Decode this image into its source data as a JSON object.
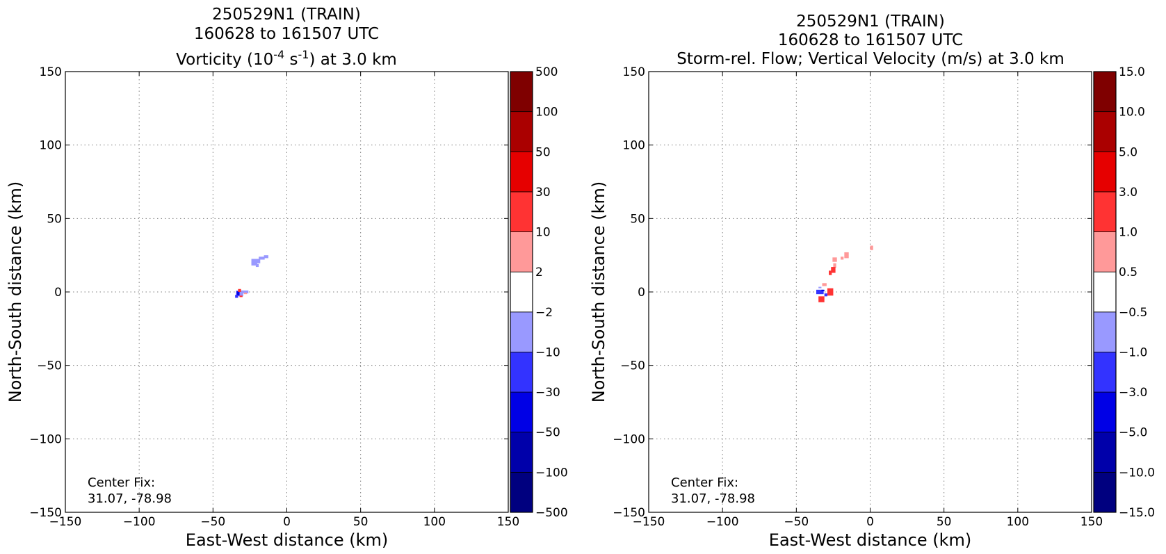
{
  "colors": {
    "levels": [
      "#00007f",
      "#0000aa",
      "#0000e6",
      "#3333ff",
      "#9999ff",
      "#ffffff",
      "#ff9999",
      "#ff3333",
      "#e60000",
      "#aa0000",
      "#7f0000"
    ]
  },
  "chart_data": [
    {
      "type": "heatmap",
      "title_lines": [
        "250529N1 (TRAIN)",
        "160628 to 161507 UTC"
      ],
      "title_line3": {
        "pre": "Vorticity (10",
        "sup1": "-4",
        "mid": " s",
        "sup2": "-1",
        "post": ") at 3.0 km"
      },
      "xlabel": "East-West distance (km)",
      "ylabel": "North-South distance (km)",
      "xlim": [
        -150,
        150
      ],
      "ylim": [
        -150,
        150
      ],
      "xticks": [
        -150,
        -100,
        -50,
        0,
        50,
        100,
        150
      ],
      "yticks": [
        -150,
        -100,
        -50,
        0,
        50,
        100,
        150
      ],
      "xtick_labels": [
        "−150",
        "−100",
        "−50",
        "0",
        "50",
        "100",
        "150"
      ],
      "ytick_labels": [
        "−150",
        "−100",
        "−50",
        "0",
        "50",
        "100",
        "150"
      ],
      "grid": true,
      "annotation": [
        "Center Fix:",
        "31.07, -78.98"
      ],
      "colorbar": {
        "bounds": [
          -500,
          -100,
          -50,
          -30,
          -10,
          -2,
          2,
          10,
          30,
          50,
          100,
          500
        ],
        "labels": [
          "−500",
          "−100",
          "−50",
          "−30",
          "−10",
          "−2",
          "2",
          "10",
          "30",
          "50",
          "100",
          "500"
        ]
      },
      "points": [
        {
          "x": -21,
          "y": 21,
          "w": 6,
          "h": 3,
          "level": 4
        },
        {
          "x": -17,
          "y": 23,
          "w": 4,
          "h": 2,
          "level": 4
        },
        {
          "x": -14,
          "y": 24,
          "w": 3,
          "h": 2,
          "level": 4
        },
        {
          "x": -22,
          "y": 19,
          "w": 4,
          "h": 2,
          "level": 4
        },
        {
          "x": -20,
          "y": 18,
          "w": 2,
          "h": 2,
          "level": 4
        },
        {
          "x": -32,
          "y": -1,
          "w": 5,
          "h": 4,
          "level": 4
        },
        {
          "x": -28,
          "y": 0,
          "w": 4,
          "h": 2,
          "level": 4
        },
        {
          "x": -33,
          "y": -1,
          "w": 2,
          "h": 3,
          "level": 2
        },
        {
          "x": -34,
          "y": -3,
          "w": 2,
          "h": 2,
          "level": 3
        },
        {
          "x": -32,
          "y": 1,
          "w": 2,
          "h": 2,
          "level": 7
        },
        {
          "x": -31,
          "y": -3,
          "w": 2,
          "h": 1,
          "level": 7
        },
        {
          "x": -28,
          "y": -1,
          "w": 2,
          "h": 1,
          "level": 6
        }
      ]
    },
    {
      "type": "heatmap",
      "title_lines": [
        "250529N1 (TRAIN)",
        "160628 to 161507 UTC",
        "Storm-rel. Flow; Vertical Velocity (m/s) at 3.0 km"
      ],
      "xlabel": "East-West distance (km)",
      "ylabel": "North-South distance (km)",
      "xlim": [
        -150,
        150
      ],
      "ylim": [
        -150,
        150
      ],
      "xticks": [
        -150,
        -100,
        -50,
        0,
        50,
        100,
        150
      ],
      "yticks": [
        -150,
        -100,
        -50,
        0,
        50,
        100,
        150
      ],
      "xtick_labels": [
        "−150",
        "−100",
        "−50",
        "0",
        "50",
        "100",
        "150"
      ],
      "ytick_labels": [
        "−150",
        "−100",
        "−50",
        "0",
        "50",
        "100",
        "150"
      ],
      "grid": true,
      "annotation": [
        "Center Fix:",
        "31.07, -78.98"
      ],
      "colorbar": {
        "bounds": [
          -15,
          -10,
          -5,
          -3,
          -1,
          -0.5,
          0.5,
          1,
          3,
          5,
          10,
          15
        ],
        "labels": [
          "−15.0",
          "−10.0",
          "−5.0",
          "−3.0",
          "−1.0",
          "−0.5",
          "0.5",
          "1.0",
          "3.0",
          "5.0",
          "10.0",
          "15.0"
        ]
      },
      "points": [
        {
          "x": -16,
          "y": 25,
          "w": 3,
          "h": 4,
          "level": 6
        },
        {
          "x": -19,
          "y": 23,
          "w": 2,
          "h": 2,
          "level": 6
        },
        {
          "x": -24,
          "y": 22,
          "w": 3,
          "h": 3,
          "level": 6
        },
        {
          "x": -24,
          "y": 18,
          "w": 2,
          "h": 3,
          "level": 6
        },
        {
          "x": 1,
          "y": 30,
          "w": 2,
          "h": 3,
          "level": 6
        },
        {
          "x": -25,
          "y": 15,
          "w": 3,
          "h": 4,
          "level": 7
        },
        {
          "x": -27,
          "y": 13,
          "w": 2,
          "h": 3,
          "level": 7
        },
        {
          "x": -27,
          "y": 0,
          "w": 4,
          "h": 5,
          "level": 7
        },
        {
          "x": -33,
          "y": -5,
          "w": 4,
          "h": 4,
          "level": 7
        },
        {
          "x": -31,
          "y": 5,
          "w": 3,
          "h": 2,
          "level": 6
        },
        {
          "x": -34,
          "y": 0,
          "w": 5,
          "h": 3,
          "level": 3
        },
        {
          "x": -32,
          "y": 1,
          "w": 2,
          "h": 1,
          "level": 2
        },
        {
          "x": -30,
          "y": -2,
          "w": 2,
          "h": 2,
          "level": 3
        },
        {
          "x": -34,
          "y": 3,
          "w": 2,
          "h": 1,
          "level": 4
        }
      ]
    }
  ]
}
